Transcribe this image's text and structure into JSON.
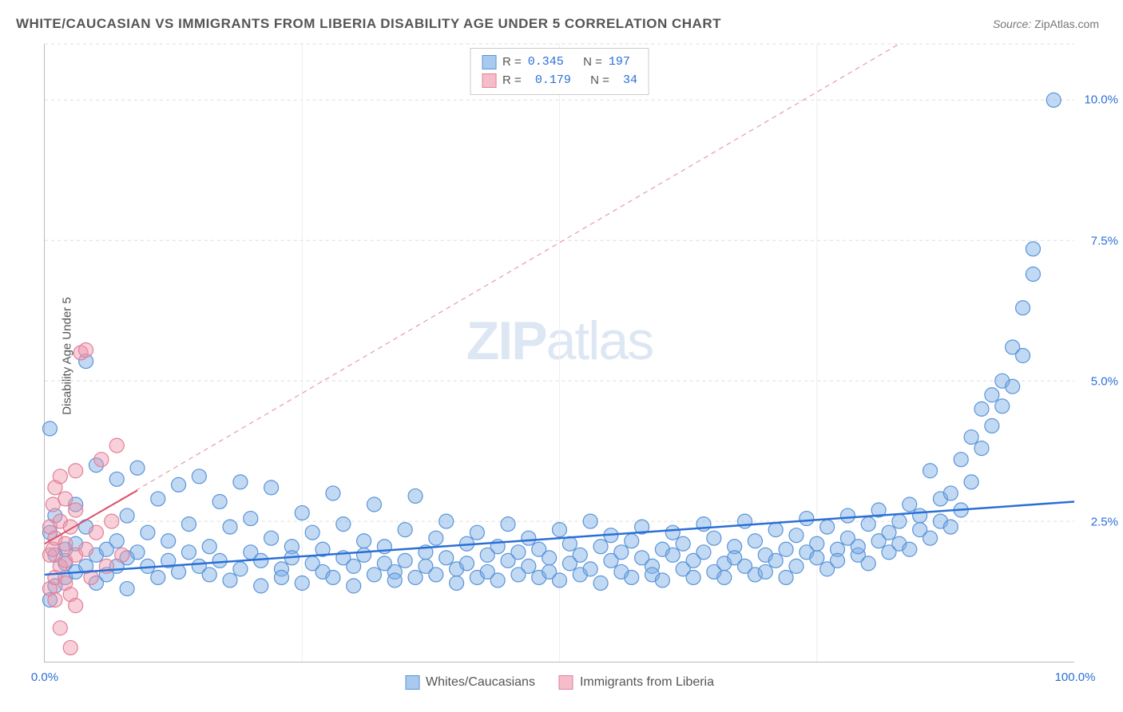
{
  "title": "WHITE/CAUCASIAN VS IMMIGRANTS FROM LIBERIA DISABILITY AGE UNDER 5 CORRELATION CHART",
  "source_label": "Source:",
  "source_value": "ZipAtlas.com",
  "ylabel": "Disability Age Under 5",
  "watermark_bold": "ZIP",
  "watermark_light": "atlas",
  "chart": {
    "type": "scatter",
    "xlim": [
      0,
      100
    ],
    "ylim": [
      0,
      11
    ],
    "x_ticks": [
      0,
      100
    ],
    "x_tick_labels": [
      "0.0%",
      "100.0%"
    ],
    "x_tick_color": "#2a6fd6",
    "y_grid": [
      2.5,
      5.0,
      7.5,
      10.0,
      11.0
    ],
    "y_tick_labels": [
      "2.5%",
      "5.0%",
      "7.5%",
      "10.0%"
    ],
    "y_tick_values": [
      2.5,
      5.0,
      7.5,
      10.0
    ],
    "y_tick_color": "#2a6fd6",
    "v_grid_positions": [
      25,
      50,
      75
    ],
    "background_color": "#ffffff",
    "grid_color": "#dddddd",
    "point_radius": 9,
    "point_stroke_width": 1.2,
    "series": [
      {
        "name": "Whites/Caucasians",
        "fill": "rgba(120,170,230,0.45)",
        "stroke": "#5a94d8",
        "swatch_fill": "#a9c9ef",
        "swatch_border": "#5a94d8",
        "R": "0.345",
        "N": "197",
        "trend": {
          "x1": 0,
          "y1": 1.55,
          "x2": 100,
          "y2": 2.85,
          "color": "#2a6fd6",
          "width": 2.5,
          "dash": "none"
        },
        "points": [
          [
            0.5,
            4.15
          ],
          [
            2,
            1.5
          ],
          [
            2,
            1.75
          ],
          [
            2,
            2.0
          ],
          [
            1,
            1.35
          ],
          [
            1,
            2.6
          ],
          [
            1,
            1.9
          ],
          [
            0.5,
            1.1
          ],
          [
            0.5,
            2.3
          ],
          [
            3,
            2.1
          ],
          [
            3,
            1.6
          ],
          [
            3,
            2.8
          ],
          [
            4,
            1.7
          ],
          [
            4,
            2.4
          ],
          [
            4,
            5.35
          ],
          [
            5,
            1.9
          ],
          [
            5,
            1.4
          ],
          [
            5,
            3.5
          ],
          [
            6,
            2.0
          ],
          [
            6,
            1.55
          ],
          [
            7,
            3.25
          ],
          [
            7,
            1.7
          ],
          [
            7,
            2.15
          ],
          [
            8,
            1.85
          ],
          [
            8,
            2.6
          ],
          [
            8,
            1.3
          ],
          [
            9,
            3.45
          ],
          [
            9,
            1.95
          ],
          [
            10,
            1.7
          ],
          [
            10,
            2.3
          ],
          [
            11,
            1.5
          ],
          [
            11,
            2.9
          ],
          [
            12,
            1.8
          ],
          [
            12,
            2.15
          ],
          [
            13,
            3.15
          ],
          [
            13,
            1.6
          ],
          [
            14,
            1.95
          ],
          [
            14,
            2.45
          ],
          [
            15,
            1.7
          ],
          [
            15,
            3.3
          ],
          [
            16,
            1.55
          ],
          [
            16,
            2.05
          ],
          [
            17,
            2.85
          ],
          [
            17,
            1.8
          ],
          [
            18,
            1.45
          ],
          [
            18,
            2.4
          ],
          [
            19,
            3.2
          ],
          [
            19,
            1.65
          ],
          [
            20,
            1.95
          ],
          [
            20,
            2.55
          ],
          [
            21,
            1.35
          ],
          [
            21,
            1.8
          ],
          [
            22,
            2.2
          ],
          [
            22,
            3.1
          ],
          [
            23,
            1.65
          ],
          [
            23,
            1.5
          ],
          [
            24,
            2.05
          ],
          [
            24,
            1.85
          ],
          [
            25,
            2.65
          ],
          [
            25,
            1.4
          ],
          [
            26,
            1.75
          ],
          [
            26,
            2.3
          ],
          [
            27,
            1.6
          ],
          [
            27,
            2.0
          ],
          [
            28,
            3.0
          ],
          [
            28,
            1.5
          ],
          [
            29,
            1.85
          ],
          [
            29,
            2.45
          ],
          [
            30,
            1.7
          ],
          [
            30,
            1.35
          ],
          [
            31,
            2.15
          ],
          [
            31,
            1.9
          ],
          [
            32,
            1.55
          ],
          [
            32,
            2.8
          ],
          [
            33,
            1.75
          ],
          [
            33,
            2.05
          ],
          [
            34,
            1.6
          ],
          [
            34,
            1.45
          ],
          [
            35,
            2.35
          ],
          [
            35,
            1.8
          ],
          [
            36,
            1.5
          ],
          [
            36,
            2.95
          ],
          [
            37,
            1.7
          ],
          [
            37,
            1.95
          ],
          [
            38,
            2.2
          ],
          [
            38,
            1.55
          ],
          [
            39,
            1.85
          ],
          [
            39,
            2.5
          ],
          [
            40,
            1.65
          ],
          [
            40,
            1.4
          ],
          [
            41,
            2.1
          ],
          [
            41,
            1.75
          ],
          [
            42,
            1.5
          ],
          [
            42,
            2.3
          ],
          [
            43,
            1.9
          ],
          [
            43,
            1.6
          ],
          [
            44,
            2.05
          ],
          [
            44,
            1.45
          ],
          [
            45,
            1.8
          ],
          [
            45,
            2.45
          ],
          [
            46,
            1.55
          ],
          [
            46,
            1.95
          ],
          [
            47,
            2.2
          ],
          [
            47,
            1.7
          ],
          [
            48,
            1.5
          ],
          [
            48,
            2.0
          ],
          [
            49,
            1.85
          ],
          [
            49,
            1.6
          ],
          [
            50,
            2.35
          ],
          [
            50,
            1.45
          ],
          [
            51,
            1.75
          ],
          [
            51,
            2.1
          ],
          [
            52,
            1.55
          ],
          [
            52,
            1.9
          ],
          [
            53,
            2.5
          ],
          [
            53,
            1.65
          ],
          [
            54,
            1.4
          ],
          [
            54,
            2.05
          ],
          [
            55,
            1.8
          ],
          [
            55,
            2.25
          ],
          [
            56,
            1.6
          ],
          [
            56,
            1.95
          ],
          [
            57,
            2.15
          ],
          [
            57,
            1.5
          ],
          [
            58,
            1.85
          ],
          [
            58,
            2.4
          ],
          [
            59,
            1.7
          ],
          [
            59,
            1.55
          ],
          [
            60,
            2.0
          ],
          [
            60,
            1.45
          ],
          [
            61,
            1.9
          ],
          [
            61,
            2.3
          ],
          [
            62,
            1.65
          ],
          [
            62,
            2.1
          ],
          [
            63,
            1.8
          ],
          [
            63,
            1.5
          ],
          [
            64,
            2.45
          ],
          [
            64,
            1.95
          ],
          [
            65,
            1.6
          ],
          [
            65,
            2.2
          ],
          [
            66,
            1.75
          ],
          [
            66,
            1.5
          ],
          [
            67,
            2.05
          ],
          [
            67,
            1.85
          ],
          [
            68,
            2.5
          ],
          [
            68,
            1.7
          ],
          [
            69,
            1.55
          ],
          [
            69,
            2.15
          ],
          [
            70,
            1.9
          ],
          [
            70,
            1.6
          ],
          [
            71,
            2.35
          ],
          [
            71,
            1.8
          ],
          [
            72,
            1.5
          ],
          [
            72,
            2.0
          ],
          [
            73,
            2.25
          ],
          [
            73,
            1.7
          ],
          [
            74,
            1.95
          ],
          [
            74,
            2.55
          ],
          [
            75,
            1.85
          ],
          [
            75,
            2.1
          ],
          [
            76,
            1.65
          ],
          [
            76,
            2.4
          ],
          [
            77,
            2.0
          ],
          [
            77,
            1.8
          ],
          [
            78,
            2.2
          ],
          [
            78,
            2.6
          ],
          [
            79,
            1.9
          ],
          [
            79,
            2.05
          ],
          [
            80,
            2.45
          ],
          [
            80,
            1.75
          ],
          [
            81,
            2.15
          ],
          [
            81,
            2.7
          ],
          [
            82,
            1.95
          ],
          [
            82,
            2.3
          ],
          [
            83,
            2.5
          ],
          [
            83,
            2.1
          ],
          [
            84,
            2.8
          ],
          [
            84,
            2.0
          ],
          [
            85,
            2.35
          ],
          [
            85,
            2.6
          ],
          [
            86,
            2.2
          ],
          [
            86,
            3.4
          ],
          [
            87,
            2.5
          ],
          [
            87,
            2.9
          ],
          [
            88,
            3.0
          ],
          [
            88,
            2.4
          ],
          [
            89,
            3.6
          ],
          [
            89,
            2.7
          ],
          [
            90,
            4.0
          ],
          [
            90,
            3.2
          ],
          [
            91,
            4.5
          ],
          [
            91,
            3.8
          ],
          [
            92,
            4.75
          ],
          [
            92,
            4.2
          ],
          [
            93,
            5.0
          ],
          [
            93,
            4.55
          ],
          [
            94,
            5.6
          ],
          [
            94,
            4.9
          ],
          [
            95,
            6.3
          ],
          [
            95,
            5.45
          ],
          [
            96,
            6.9
          ],
          [
            96,
            7.35
          ],
          [
            98,
            10.0
          ]
        ]
      },
      {
        "name": "Immigrants from Liberia",
        "fill": "rgba(240,150,170,0.45)",
        "stroke": "#e27f99",
        "swatch_fill": "#f4bdc9",
        "swatch_border": "#e27f99",
        "R": "0.179",
        "N": "34",
        "trend": {
          "x1": 0,
          "y1": 2.1,
          "x2": 9,
          "y2": 3.05,
          "color": "#d9546e",
          "width": 2,
          "dash": "none"
        },
        "trend_ext": {
          "x1": 0,
          "y1": 2.1,
          "x2": 83,
          "y2": 11.0,
          "color": "#e89bad",
          "width": 1.2,
          "dash": "6,5"
        },
        "points": [
          [
            0.5,
            1.9
          ],
          [
            0.5,
            2.4
          ],
          [
            0.5,
            1.3
          ],
          [
            0.8,
            2.0
          ],
          [
            0.8,
            2.8
          ],
          [
            1,
            1.5
          ],
          [
            1,
            2.2
          ],
          [
            1,
            3.1
          ],
          [
            1,
            1.1
          ],
          [
            1.5,
            2.5
          ],
          [
            1.5,
            1.7
          ],
          [
            1.5,
            3.3
          ],
          [
            1.5,
            0.6
          ],
          [
            2,
            1.4
          ],
          [
            2,
            2.1
          ],
          [
            2,
            2.9
          ],
          [
            2,
            1.8
          ],
          [
            2.5,
            2.4
          ],
          [
            2.5,
            1.2
          ],
          [
            2.5,
            0.25
          ],
          [
            3,
            1.9
          ],
          [
            3,
            2.7
          ],
          [
            3,
            3.4
          ],
          [
            3,
            1.0
          ],
          [
            3.5,
            5.5
          ],
          [
            4,
            5.55
          ],
          [
            4,
            2.0
          ],
          [
            4.5,
            1.5
          ],
          [
            5,
            2.3
          ],
          [
            5.5,
            3.6
          ],
          [
            6,
            1.7
          ],
          [
            6.5,
            2.5
          ],
          [
            7,
            3.85
          ],
          [
            7.5,
            1.9
          ]
        ]
      }
    ]
  },
  "stats_box": {
    "R_label": "R =",
    "N_label": "N ="
  },
  "bottom_legend": [
    "Whites/Caucasians",
    "Immigrants from Liberia"
  ]
}
